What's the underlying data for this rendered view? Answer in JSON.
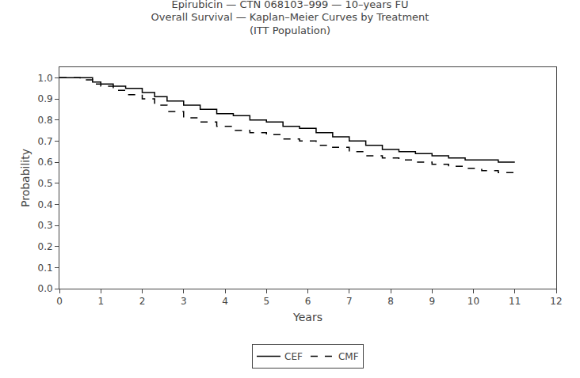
{
  "chart_data": {
    "type": "step",
    "title": "Epirubicin — CTN 068103–999 — 10–years FU\nOverall Survival — Kaplan–Meier Curves by Treatment\n(ITT Population)",
    "x_label": "Years",
    "y_label": "Probability",
    "xlim": [
      0,
      12
    ],
    "ylim": [
      0.0,
      1.05
    ],
    "xticks": [
      0,
      1,
      2,
      3,
      4,
      5,
      6,
      7,
      8,
      9,
      10,
      11,
      12
    ],
    "yticks": [
      {
        "value": 0.0,
        "label": "0.0"
      },
      0.1,
      0.2,
      0.3,
      0.4,
      0.5,
      0.6,
      0.7,
      0.8,
      0.9,
      {
        "value": 1.0,
        "label": "1.0"
      }
    ],
    "grid": false,
    "legend": "bottom",
    "series": [
      {
        "name": "CEF",
        "color": "#000000",
        "line_style": "solid",
        "x": [
          0,
          0.5,
          0.8,
          1.0,
          1.3,
          1.6,
          2.0,
          2.3,
          2.6,
          3.0,
          3.4,
          3.8,
          4.2,
          4.6,
          5.0,
          5.4,
          5.8,
          6.2,
          6.6,
          7.0,
          7.4,
          7.8,
          8.2,
          8.6,
          9.0,
          9.4,
          9.8,
          10.2,
          10.6,
          11.0
        ],
        "values": [
          1.0,
          1.0,
          0.98,
          0.97,
          0.96,
          0.95,
          0.93,
          0.91,
          0.89,
          0.87,
          0.85,
          0.83,
          0.82,
          0.8,
          0.79,
          0.77,
          0.76,
          0.74,
          0.72,
          0.7,
          0.68,
          0.66,
          0.65,
          0.64,
          0.63,
          0.62,
          0.61,
          0.61,
          0.6,
          0.6
        ]
      },
      {
        "name": "CMF",
        "color": "#000000",
        "line_style": "dashed",
        "x": [
          0,
          0.5,
          0.8,
          1.0,
          1.3,
          1.6,
          2.0,
          2.3,
          2.6,
          3.0,
          3.4,
          3.8,
          4.2,
          4.6,
          5.0,
          5.4,
          5.8,
          6.2,
          6.6,
          7.0,
          7.4,
          7.8,
          8.2,
          8.6,
          9.0,
          9.4,
          9.8,
          10.2,
          10.6,
          11.0
        ],
        "values": [
          1.0,
          0.99,
          0.97,
          0.96,
          0.94,
          0.92,
          0.9,
          0.87,
          0.84,
          0.81,
          0.79,
          0.77,
          0.75,
          0.74,
          0.73,
          0.71,
          0.7,
          0.68,
          0.67,
          0.65,
          0.63,
          0.62,
          0.61,
          0.6,
          0.59,
          0.58,
          0.57,
          0.56,
          0.55,
          0.55
        ]
      }
    ]
  }
}
